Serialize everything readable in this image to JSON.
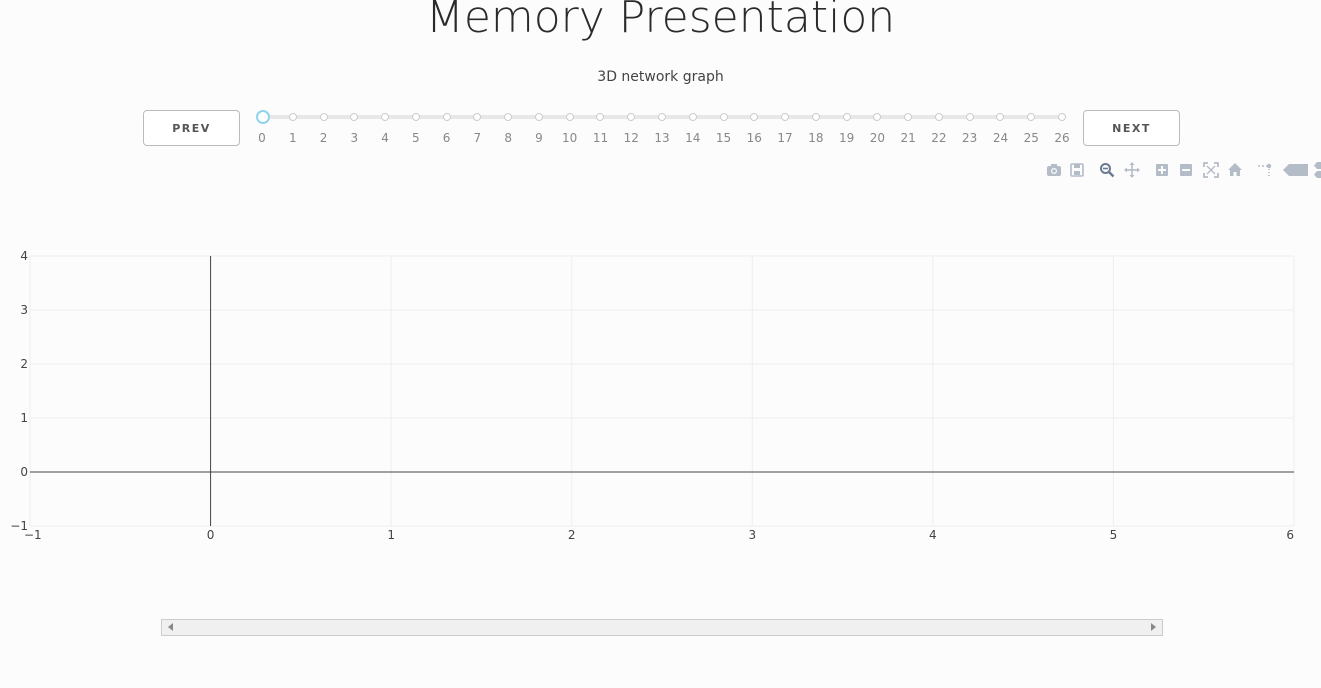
{
  "page": {
    "title": "Memory Presentation",
    "subtitle": "3D network graph"
  },
  "controls": {
    "prev_label": "PREV",
    "next_label": "NEXT",
    "slider": {
      "steps": [
        "0",
        "1",
        "2",
        "3",
        "4",
        "5",
        "6",
        "7",
        "8",
        "9",
        "10",
        "11",
        "12",
        "13",
        "14",
        "15",
        "16",
        "17",
        "18",
        "19",
        "20",
        "21",
        "22",
        "23",
        "24",
        "25",
        "26"
      ],
      "active_index": 0,
      "accent_color": "#8fd4ea"
    }
  },
  "modebar": {
    "icons": [
      "camera-icon",
      "save-icon",
      "zoom-icon",
      "pan-icon",
      "zoom-in-icon",
      "zoom-out-icon",
      "autoscale-icon",
      "home-icon",
      "spike-lines-icon",
      "hover-closest-icon",
      "hover-compare-icon"
    ]
  },
  "chart_data": {
    "type": "scatter",
    "series": [],
    "xlim": [
      -1,
      6
    ],
    "ylim": [
      -1,
      4
    ],
    "xticks": [
      "−1",
      "0",
      "1",
      "2",
      "3",
      "4",
      "5",
      "6"
    ],
    "yticks": [
      "−1",
      "0",
      "1",
      "2",
      "3",
      "4"
    ],
    "grid": true,
    "zerolines": true,
    "title": "",
    "xlabel": "",
    "ylabel": ""
  }
}
